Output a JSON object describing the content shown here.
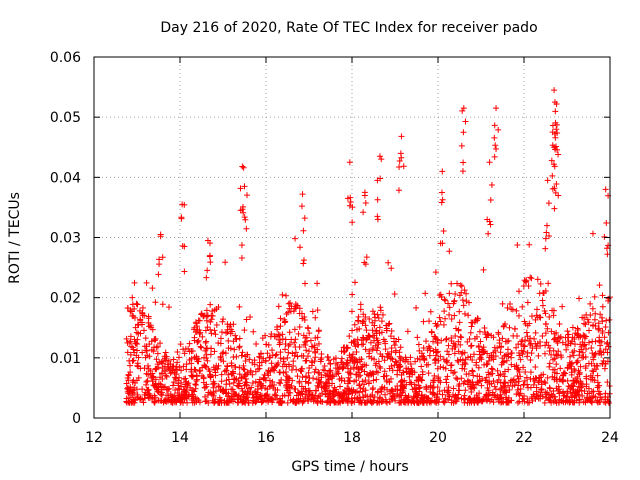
{
  "chart_data": {
    "type": "scatter",
    "title": "Day 216 of 2020, Rate Of TEC Index for receiver pado",
    "xlabel": "GPS time / hours",
    "ylabel": "ROTI / TECUs",
    "xlim": [
      12,
      24
    ],
    "ylim": [
      0,
      0.06
    ],
    "xticks": [
      12,
      14,
      16,
      18,
      20,
      22,
      24
    ],
    "yticks": [
      0,
      0.01,
      0.02,
      0.03,
      0.04,
      0.05,
      0.06
    ],
    "xtick_labels": [
      "12",
      "14",
      "16",
      "18",
      "20",
      "22",
      "24"
    ],
    "ytick_labels": [
      "0",
      "0.01",
      "0.02",
      "0.03",
      "0.04",
      "0.05",
      "0.06"
    ],
    "grid": true,
    "marker": "+",
    "color": "#ff0000",
    "series": [
      {
        "name": "ROTI",
        "x_start": 12.75,
        "x_end": 24.0,
        "typical_range": [
          0.002,
          0.02
        ],
        "notable_points": [
          {
            "x": 13.55,
            "y": 0.0305
          },
          {
            "x": 14.05,
            "y": 0.0355
          },
          {
            "x": 14.65,
            "y": 0.0295
          },
          {
            "x": 15.45,
            "y": 0.0418
          },
          {
            "x": 15.5,
            "y": 0.0385
          },
          {
            "x": 16.85,
            "y": 0.0372
          },
          {
            "x": 17.95,
            "y": 0.0425
          },
          {
            "x": 18.3,
            "y": 0.0375
          },
          {
            "x": 18.65,
            "y": 0.0435
          },
          {
            "x": 19.15,
            "y": 0.0468
          },
          {
            "x": 20.1,
            "y": 0.041
          },
          {
            "x": 20.6,
            "y": 0.0515
          },
          {
            "x": 21.35,
            "y": 0.0515
          },
          {
            "x": 21.2,
            "y": 0.0425
          },
          {
            "x": 22.7,
            "y": 0.0545
          },
          {
            "x": 22.72,
            "y": 0.0525
          },
          {
            "x": 22.75,
            "y": 0.048
          },
          {
            "x": 22.7,
            "y": 0.045
          },
          {
            "x": 22.55,
            "y": 0.0395
          },
          {
            "x": 23.9,
            "y": 0.038
          }
        ]
      }
    ]
  }
}
